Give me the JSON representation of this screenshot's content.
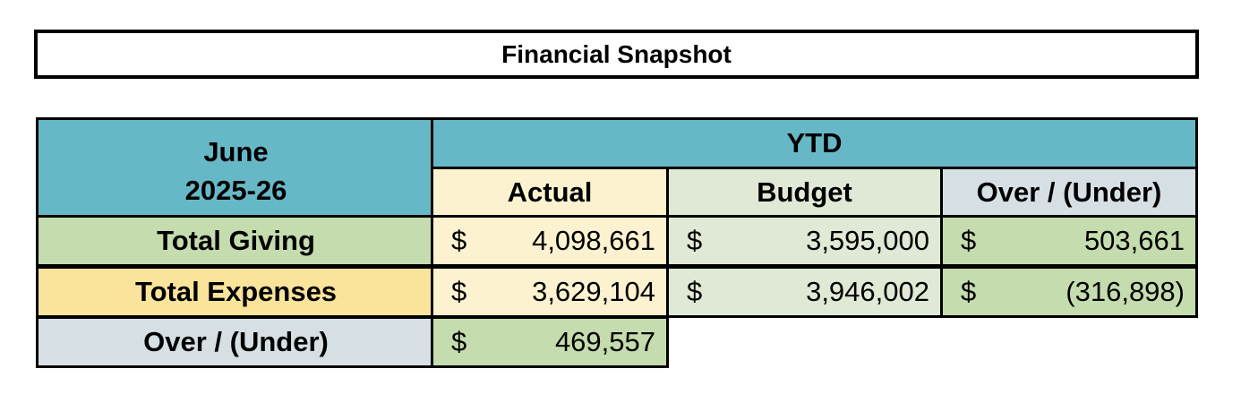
{
  "title": "Financial Snapshot",
  "header": {
    "period_month": "June",
    "period_year": "2025-26",
    "ytd": "YTD",
    "columns": [
      "Actual",
      "Budget",
      "Over / (Under)"
    ]
  },
  "rows": [
    {
      "label": "Total Giving",
      "actual": {
        "currency": "$",
        "amount": "4,098,661"
      },
      "budget": {
        "currency": "$",
        "amount": "3,595,000"
      },
      "over_under": {
        "currency": "$",
        "amount": "503,661"
      }
    },
    {
      "label": "Total Expenses",
      "actual": {
        "currency": "$",
        "amount": "3,629,104"
      },
      "budget": {
        "currency": "$",
        "amount": "3,946,002"
      },
      "over_under": {
        "currency": "$",
        "amount": "(316,898)"
      }
    }
  ],
  "summary": {
    "label": "Over / (Under)",
    "actual": {
      "currency": "$",
      "amount": "469,557"
    }
  },
  "colors": {
    "header_teal": "#67b8c6",
    "actual_bg": "#fdf2d0",
    "budget_bg": "#dfe9d5",
    "over_bg": "#d6e0e4",
    "green": "#c5dcae",
    "yellow": "#fae39b"
  }
}
